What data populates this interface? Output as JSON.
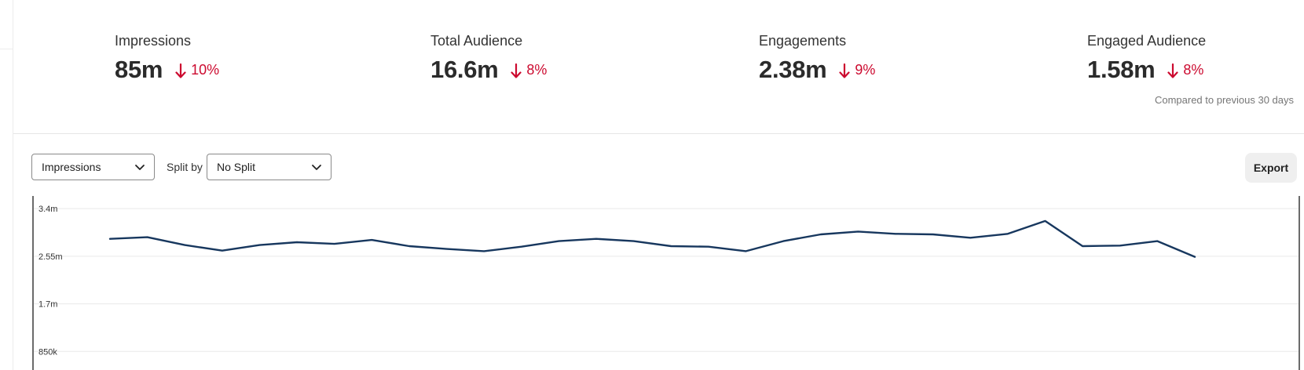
{
  "stats": [
    {
      "label": "Impressions",
      "value": "85m",
      "change": "10%",
      "direction": "down"
    },
    {
      "label": "Total Audience",
      "value": "16.6m",
      "change": "8%",
      "direction": "down"
    },
    {
      "label": "Engagements",
      "value": "2.38m",
      "change": "9%",
      "direction": "down"
    },
    {
      "label": "Engaged Audience",
      "value": "1.58m",
      "change": "8%",
      "direction": "down"
    }
  ],
  "compare_note": "Compared to previous 30 days",
  "controls": {
    "metric_select": "Impressions",
    "split_label": "Split by",
    "split_select": "No Split",
    "export_label": "Export"
  },
  "colors": {
    "negative": "#cc0a2f",
    "line": "#17375e"
  },
  "chart_data": {
    "type": "line",
    "y_tick_labels": [
      "3.4m",
      "2.55m",
      "1.7m",
      "850k"
    ],
    "y_ticks": [
      3400000,
      2550000,
      1700000,
      850000
    ],
    "ylim": [
      650000,
      3500000
    ],
    "grid": true,
    "series": [
      {
        "values": [
          2860000,
          2890000,
          2750000,
          2650000,
          2750000,
          2800000,
          2770000,
          2840000,
          2730000,
          2680000,
          2640000,
          2720000,
          2820000,
          2860000,
          2820000,
          2730000,
          2720000,
          2640000,
          2820000,
          2940000,
          2990000,
          2950000,
          2940000,
          2880000,
          2950000,
          3180000,
          2730000,
          2740000,
          2820000,
          2540000
        ]
      }
    ]
  }
}
